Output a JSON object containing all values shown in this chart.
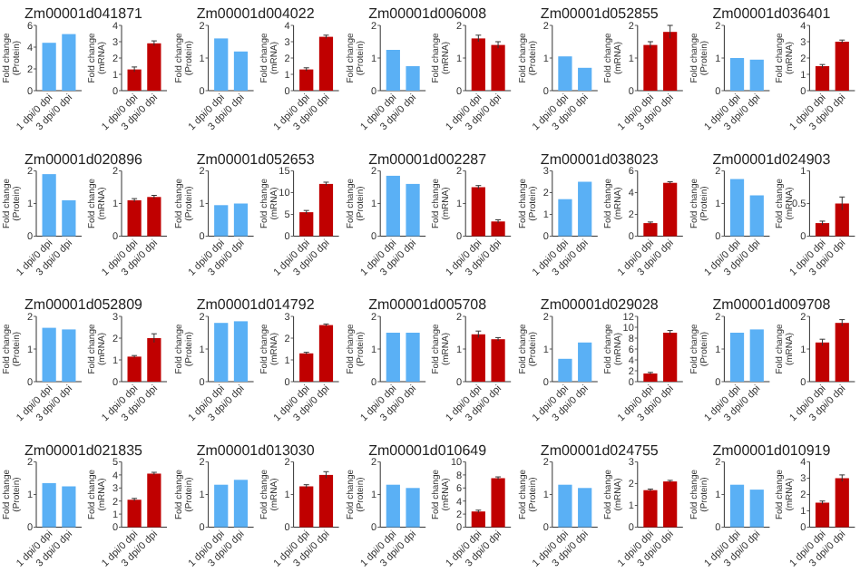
{
  "chart_data": [
    {
      "type": "bar",
      "title": "Zm00001d041871",
      "ylabel": "Fold change (Protein)",
      "categories": [
        "1 dpi/0 dpi",
        "3 dpi/0 dpi"
      ],
      "values": [
        4.4,
        5.2
      ],
      "color": "#5ab0f5",
      "ylim": [
        0,
        6
      ],
      "yticks": [
        0,
        2,
        4,
        6
      ]
    },
    {
      "type": "bar",
      "ylabel": "Fold change (mRNA)",
      "categories": [
        "1 dpi/0 dpi",
        "3 dpi/0 dpi"
      ],
      "values": [
        1.3,
        2.9
      ],
      "errors": [
        0.15,
        0.15
      ],
      "color": "#c00000",
      "ylim": [
        0,
        4
      ],
      "yticks": [
        0,
        1,
        2,
        3,
        4
      ]
    },
    {
      "type": "bar",
      "title": "Zm00001d004022",
      "ylabel": "Fold change (Protein)",
      "categories": [
        "1 dpi/0 dpi",
        "3 dpi/0 dpi"
      ],
      "values": [
        1.6,
        1.2
      ],
      "color": "#5ab0f5",
      "ylim": [
        0,
        2
      ],
      "yticks": [
        0,
        1,
        2
      ]
    },
    {
      "type": "bar",
      "ylabel": "Fold change (mRNA)",
      "categories": [
        "1 dpi/0 dpi",
        "3 dpi/0 dpi"
      ],
      "values": [
        1.3,
        3.3
      ],
      "errors": [
        0.1,
        0.1
      ],
      "color": "#c00000",
      "ylim": [
        0,
        4
      ],
      "yticks": [
        0,
        1,
        2,
        3,
        4
      ]
    },
    {
      "type": "bar",
      "title": "Zm00001d006008",
      "ylabel": "Fold change (Protein)",
      "categories": [
        "1 dpi/0 dpi",
        "3 dpi/0 dpi"
      ],
      "values": [
        1.25,
        0.75
      ],
      "color": "#5ab0f5",
      "ylim": [
        0,
        2
      ],
      "yticks": [
        0,
        1,
        2
      ]
    },
    {
      "type": "bar",
      "ylabel": "Fold change (mRNA)",
      "categories": [
        "1 dpi/0 dpi",
        "3 dpi/0 dpi"
      ],
      "values": [
        1.6,
        1.4
      ],
      "errors": [
        0.1,
        0.1
      ],
      "color": "#c00000",
      "ylim": [
        0,
        2
      ],
      "yticks": [
        0,
        1,
        2
      ]
    },
    {
      "type": "bar",
      "title": "Zm00001d052855",
      "ylabel": "Fold change (Protein)",
      "categories": [
        "1 dpi/0 dpi",
        "3 dpi/0 dpi"
      ],
      "values": [
        1.05,
        0.7
      ],
      "color": "#5ab0f5",
      "ylim": [
        0,
        2
      ],
      "yticks": [
        0,
        1,
        2
      ]
    },
    {
      "type": "bar",
      "ylabel": "Fold change (mRNA)",
      "categories": [
        "1 dpi/0 dpi",
        "3 dpi/0 dpi"
      ],
      "values": [
        1.4,
        1.8
      ],
      "errors": [
        0.1,
        0.2
      ],
      "color": "#c00000",
      "ylim": [
        0,
        2
      ],
      "yticks": [
        0,
        1,
        2
      ]
    },
    {
      "type": "bar",
      "title": "Zm00001d036401",
      "ylabel": "Fold change (Protein)",
      "categories": [
        "1 dpi/0 dpi",
        "3 dpi/0 dpi"
      ],
      "values": [
        1.0,
        0.95
      ],
      "color": "#5ab0f5",
      "ylim": [
        0,
        2
      ],
      "yticks": [
        0,
        1,
        2
      ]
    },
    {
      "type": "bar",
      "ylabel": "Fold change (mRNA)",
      "categories": [
        "1 dpi/0 dpi",
        "3 dpi/0 dpi"
      ],
      "values": [
        1.5,
        3.0
      ],
      "errors": [
        0.1,
        0.1
      ],
      "color": "#c00000",
      "ylim": [
        0,
        4
      ],
      "yticks": [
        0,
        1,
        2,
        3,
        4
      ]
    },
    {
      "type": "bar",
      "title": "Zm00001d020896",
      "ylabel": "Fold change (Protein)",
      "categories": [
        "1 dpi/0 dpi",
        "3 dpi/0 dpi"
      ],
      "values": [
        1.9,
        1.1
      ],
      "color": "#5ab0f5",
      "ylim": [
        0,
        2
      ],
      "yticks": [
        0,
        1,
        2
      ]
    },
    {
      "type": "bar",
      "ylabel": "Fold change (mRNA)",
      "categories": [
        "1 dpi/0 dpi",
        "3 dpi/0 dpi"
      ],
      "values": [
        1.1,
        1.2
      ],
      "errors": [
        0.05,
        0.05
      ],
      "color": "#c00000",
      "ylim": [
        0,
        2
      ],
      "yticks": [
        0,
        1,
        2
      ]
    },
    {
      "type": "bar",
      "title": "Zm00001d052653",
      "ylabel": "Fold change (Protein)",
      "categories": [
        "1 dpi/0 dpi",
        "3 dpi/0 dpi"
      ],
      "values": [
        0.95,
        1.0
      ],
      "color": "#5ab0f5",
      "ylim": [
        0,
        2
      ],
      "yticks": [
        0,
        1,
        2
      ]
    },
    {
      "type": "bar",
      "ylabel": "Fold change (mRNA)",
      "categories": [
        "1 dpi/0 dpi",
        "3 dpi/0 dpi"
      ],
      "values": [
        5.5,
        12
      ],
      "errors": [
        0.4,
        0.4
      ],
      "color": "#c00000",
      "ylim": [
        0,
        15
      ],
      "yticks": [
        0,
        5,
        10,
        15
      ]
    },
    {
      "type": "bar",
      "title": "Zm00001d002287",
      "ylabel": "Fold change (Protein)",
      "categories": [
        "1 dpi/0 dpi",
        "3 dpi/0 dpi"
      ],
      "values": [
        1.85,
        1.6
      ],
      "color": "#5ab0f5",
      "ylim": [
        0,
        2
      ],
      "yticks": [
        0,
        1,
        2
      ]
    },
    {
      "type": "bar",
      "ylabel": "Fold change (mRNA)",
      "categories": [
        "1 dpi/0 dpi",
        "3 dpi/0 dpi"
      ],
      "values": [
        1.5,
        0.45
      ],
      "errors": [
        0.05,
        0.05
      ],
      "color": "#c00000",
      "ylim": [
        0,
        2
      ],
      "yticks": [
        0,
        1,
        2
      ]
    },
    {
      "type": "bar",
      "title": "Zm00001d038023",
      "ylabel": "Fold change (Protein)",
      "categories": [
        "1 dpi/0 dpi",
        "3 dpi/0 dpi"
      ],
      "values": [
        1.7,
        2.5
      ],
      "color": "#5ab0f5",
      "ylim": [
        0,
        3
      ],
      "yticks": [
        0,
        1,
        2,
        3
      ]
    },
    {
      "type": "bar",
      "ylabel": "Fold change (mRNA)",
      "categories": [
        "1 dpi/0 dpi",
        "3 dpi/0 dpi"
      ],
      "values": [
        1.2,
        4.9
      ],
      "errors": [
        0.1,
        0.1
      ],
      "color": "#c00000",
      "ylim": [
        0,
        6
      ],
      "yticks": [
        0,
        2,
        4,
        6
      ]
    },
    {
      "type": "bar",
      "title": "Zm00001d024903",
      "ylabel": "Fold change (Protein)",
      "categories": [
        "1 dpi/0 dpi",
        "3 dpi/0 dpi"
      ],
      "values": [
        1.75,
        1.25
      ],
      "color": "#5ab0f5",
      "ylim": [
        0,
        2
      ],
      "yticks": [
        0,
        1,
        2
      ]
    },
    {
      "type": "bar",
      "ylabel": "Fold change (mRNA)",
      "categories": [
        "1 dpi/0 dpi",
        "3 dpi/0 dpi"
      ],
      "values": [
        0.2,
        0.5
      ],
      "errors": [
        0.03,
        0.1
      ],
      "color": "#c00000",
      "ylim": [
        0,
        1
      ],
      "yticks": [
        0,
        0.5,
        1
      ]
    },
    {
      "type": "bar",
      "title": "Zm00001d052809",
      "ylabel": "Fold change (Protein)",
      "categories": [
        "1 dpi/0 dpi",
        "3 dpi/0 dpi"
      ],
      "values": [
        1.65,
        1.6
      ],
      "color": "#5ab0f5",
      "ylim": [
        0,
        2
      ],
      "yticks": [
        0,
        1,
        2
      ]
    },
    {
      "type": "bar",
      "ylabel": "Fold change (mRNA)",
      "categories": [
        "1 dpi/0 dpi",
        "3 dpi/0 dpi"
      ],
      "values": [
        1.15,
        2.0
      ],
      "errors": [
        0.05,
        0.2
      ],
      "color": "#c00000",
      "ylim": [
        0,
        3
      ],
      "yticks": [
        0,
        1,
        2,
        3
      ]
    },
    {
      "type": "bar",
      "title": "Zm00001d014792",
      "ylabel": "Fold change (Protein)",
      "categories": [
        "1 dpi/0 dpi",
        "3 dpi/0 dpi"
      ],
      "values": [
        1.8,
        1.85
      ],
      "color": "#5ab0f5",
      "ylim": [
        0,
        2
      ],
      "yticks": [
        0,
        1,
        2
      ]
    },
    {
      "type": "bar",
      "ylabel": "Fold change (mRNA)",
      "categories": [
        "1 dpi/0 dpi",
        "3 dpi/0 dpi"
      ],
      "values": [
        1.3,
        2.6
      ],
      "errors": [
        0.05,
        0.05
      ],
      "color": "#c00000",
      "ylim": [
        0,
        3
      ],
      "yticks": [
        0,
        1,
        2,
        3
      ]
    },
    {
      "type": "bar",
      "title": "Zm00001d005708",
      "ylabel": "Fold change (Protein)",
      "categories": [
        "1 dpi/0 dpi",
        "3 dpi/0 dpi"
      ],
      "values": [
        1.5,
        1.5
      ],
      "color": "#5ab0f5",
      "ylim": [
        0,
        2
      ],
      "yticks": [
        0,
        1,
        2
      ]
    },
    {
      "type": "bar",
      "ylabel": "Fold change (mRNA)",
      "categories": [
        "1 dpi/0 dpi",
        "3 dpi/0 dpi"
      ],
      "values": [
        1.45,
        1.3
      ],
      "errors": [
        0.1,
        0.05
      ],
      "color": "#c00000",
      "ylim": [
        0,
        2
      ],
      "yticks": [
        0,
        1,
        2
      ]
    },
    {
      "type": "bar",
      "title": "Zm00001d029028",
      "ylabel": "Fold change (Protein)",
      "categories": [
        "1 dpi/0 dpi",
        "3 dpi/0 dpi"
      ],
      "values": [
        0.7,
        1.2
      ],
      "color": "#5ab0f5",
      "ylim": [
        0,
        2
      ],
      "yticks": [
        0,
        1,
        2
      ]
    },
    {
      "type": "bar",
      "ylabel": "Fold change (mRNA)",
      "categories": [
        "1 dpi/0 dpi",
        "3 dpi/0 dpi"
      ],
      "values": [
        1.5,
        9.0
      ],
      "errors": [
        0.2,
        0.4
      ],
      "color": "#c00000",
      "ylim": [
        0,
        12
      ],
      "yticks": [
        0,
        2,
        4,
        6,
        8,
        10,
        12
      ]
    },
    {
      "type": "bar",
      "title": "Zm00001d009708",
      "ylabel": "Fold change (Protein)",
      "categories": [
        "1 dpi/0 dpi",
        "3 dpi/0 dpi"
      ],
      "values": [
        1.5,
        1.6
      ],
      "color": "#5ab0f5",
      "ylim": [
        0,
        2
      ],
      "yticks": [
        0,
        1,
        2
      ]
    },
    {
      "type": "bar",
      "ylabel": "Fold change (mRNA)",
      "categories": [
        "1 dpi/0 dpi",
        "3 dpi/0 dpi"
      ],
      "values": [
        1.2,
        1.8
      ],
      "errors": [
        0.1,
        0.1
      ],
      "color": "#c00000",
      "ylim": [
        0,
        2
      ],
      "yticks": [
        0,
        1,
        2
      ]
    },
    {
      "type": "bar",
      "title": "Zm00001d021835",
      "ylabel": "Fold change (Protein)",
      "categories": [
        "1 dpi/0 dpi",
        "3 dpi/0 dpi"
      ],
      "values": [
        1.35,
        1.25
      ],
      "color": "#5ab0f5",
      "ylim": [
        0,
        2
      ],
      "yticks": [
        0,
        1,
        2
      ]
    },
    {
      "type": "bar",
      "ylabel": "Fold change (mRNA)",
      "categories": [
        "1 dpi/0 dpi",
        "3 dpi/0 dpi"
      ],
      "values": [
        2.1,
        4.1
      ],
      "errors": [
        0.1,
        0.1
      ],
      "color": "#c00000",
      "ylim": [
        0,
        5
      ],
      "yticks": [
        0,
        1,
        2,
        3,
        4,
        5
      ]
    },
    {
      "type": "bar",
      "title": "Zm00001d013030",
      "ylabel": "Fold change (Protein)",
      "categories": [
        "1 dpi/0 dpi",
        "3 dpi/0 dpi"
      ],
      "values": [
        1.3,
        1.45
      ],
      "color": "#5ab0f5",
      "ylim": [
        0,
        2
      ],
      "yticks": [
        0,
        1,
        2
      ]
    },
    {
      "type": "bar",
      "ylabel": "Fold change (mRNA)",
      "categories": [
        "1 dpi/0 dpi",
        "3 dpi/0 dpi"
      ],
      "values": [
        1.25,
        1.6
      ],
      "errors": [
        0.05,
        0.1
      ],
      "color": "#c00000",
      "ylim": [
        0,
        2
      ],
      "yticks": [
        0,
        1,
        2
      ]
    },
    {
      "type": "bar",
      "title": "Zm00001d010649",
      "ylabel": "Fold change (Protein)",
      "categories": [
        "1 dpi/0 dpi",
        "3 dpi/0 dpi"
      ],
      "values": [
        1.3,
        1.2
      ],
      "color": "#5ab0f5",
      "ylim": [
        0,
        2
      ],
      "yticks": [
        0,
        1,
        2
      ]
    },
    {
      "type": "bar",
      "ylabel": "Fold change (mRNA)",
      "categories": [
        "1 dpi/0 dpi",
        "3 dpi/0 dpi"
      ],
      "values": [
        2.4,
        7.5
      ],
      "errors": [
        0.2,
        0.2
      ],
      "color": "#c00000",
      "ylim": [
        0,
        10
      ],
      "yticks": [
        0,
        2,
        4,
        6,
        8,
        10
      ]
    },
    {
      "type": "bar",
      "title": "Zm00001d024755",
      "ylabel": "Fold change (Protein)",
      "categories": [
        "1 dpi/0 dpi",
        "3 dpi/0 dpi"
      ],
      "values": [
        1.3,
        1.2
      ],
      "color": "#5ab0f5",
      "ylim": [
        0,
        2
      ],
      "yticks": [
        0,
        1,
        2
      ]
    },
    {
      "type": "bar",
      "ylabel": "Fold change (mRNA)",
      "categories": [
        "1 dpi/0 dpi",
        "3 dpi/0 dpi"
      ],
      "values": [
        1.7,
        2.1
      ],
      "errors": [
        0.05,
        0.05
      ],
      "color": "#c00000",
      "ylim": [
        0,
        3
      ],
      "yticks": [
        0,
        1,
        2,
        3
      ]
    },
    {
      "type": "bar",
      "title": "Zm00001d010919",
      "ylabel": "Fold change (Protein)",
      "categories": [
        "1 dpi/0 dpi",
        "3 dpi/0 dpi"
      ],
      "values": [
        1.3,
        1.15
      ],
      "color": "#5ab0f5",
      "ylim": [
        0,
        2
      ],
      "yticks": [
        0,
        1,
        2
      ]
    },
    {
      "type": "bar",
      "ylabel": "Fold change (mRNA)",
      "categories": [
        "1 dpi/0 dpi",
        "3 dpi/0 dpi"
      ],
      "values": [
        1.5,
        3.0
      ],
      "errors": [
        0.1,
        0.2
      ],
      "color": "#c00000",
      "ylim": [
        0,
        4
      ],
      "yticks": [
        0,
        1,
        2,
        3,
        4
      ]
    }
  ]
}
